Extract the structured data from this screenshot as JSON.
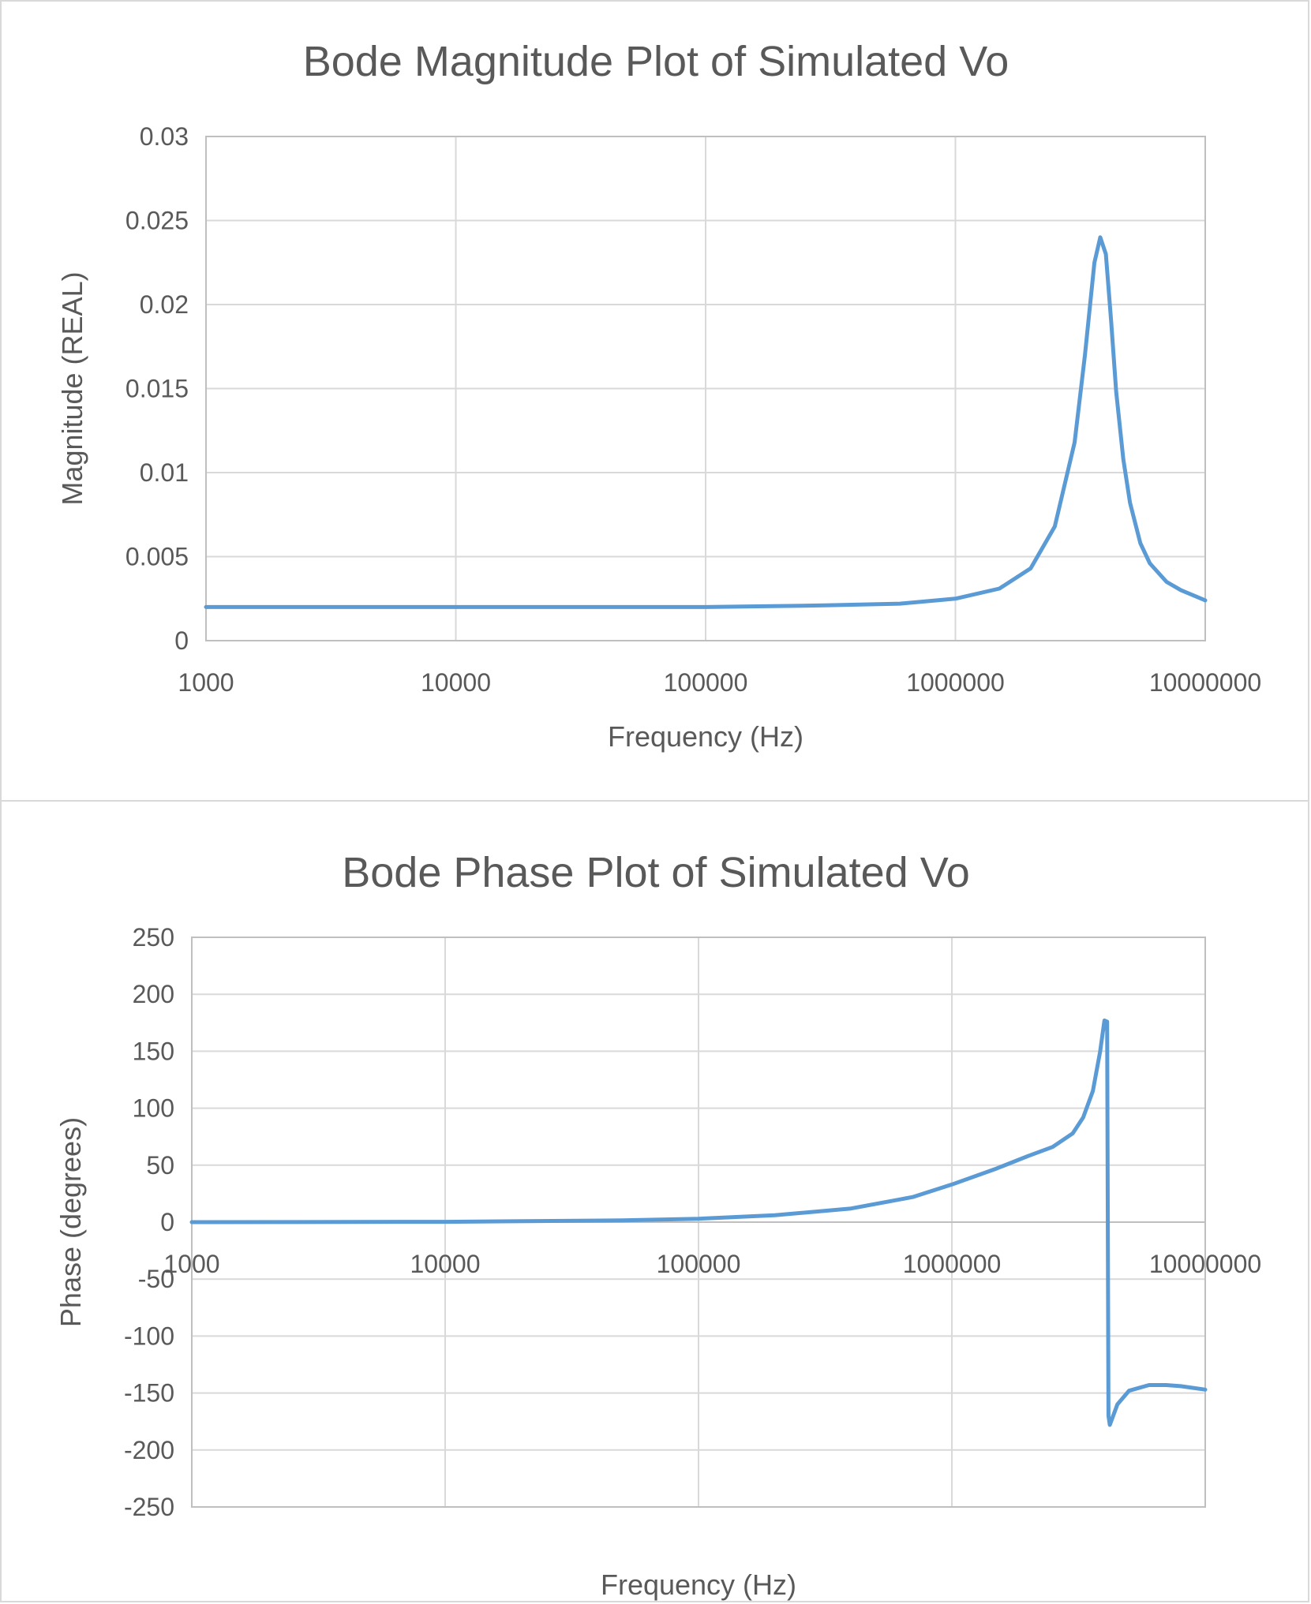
{
  "chart_data": [
    {
      "type": "line",
      "title": "Bode Magnitude Plot of Simulated Vo",
      "xlabel": "Frequency (Hz)",
      "ylabel": "Magnitude (REAL)",
      "xscale": "log",
      "xlim": [
        1000,
        10000000
      ],
      "ylim": [
        0,
        0.03
      ],
      "xticks": [
        "1000",
        "10000",
        "100000",
        "1000000",
        "10000000"
      ],
      "yticks": [
        "0",
        "0.005",
        "0.01",
        "0.015",
        "0.02",
        "0.025",
        "0.03"
      ],
      "grid": true,
      "legend": "none",
      "color": "#5b9bd5",
      "series": [
        {
          "x": [
            1000,
            10000,
            100000,
            300000,
            600000,
            1000000,
            1500000,
            2000000,
            2500000,
            3000000,
            3300000,
            3600000,
            3800000,
            4000000,
            4200000,
            4400000,
            4700000,
            5000000,
            5500000,
            6000000,
            7000000,
            8000000,
            10000000
          ],
          "y": [
            0.002,
            0.002,
            0.002,
            0.0021,
            0.0022,
            0.0025,
            0.0031,
            0.0043,
            0.0068,
            0.0118,
            0.017,
            0.0225,
            0.024,
            0.023,
            0.019,
            0.0148,
            0.0108,
            0.0082,
            0.0058,
            0.0046,
            0.0035,
            0.003,
            0.0024
          ]
        }
      ]
    },
    {
      "type": "line",
      "title": "Bode Phase Plot of Simulated Vo",
      "xlabel": "Frequency (Hz)",
      "ylabel": "Phase (degrees)",
      "xscale": "log",
      "xlim": [
        1000,
        10000000
      ],
      "ylim": [
        -250,
        250
      ],
      "xticks": [
        "1000",
        "10000",
        "100000",
        "1000000",
        "10000000"
      ],
      "yticks": [
        "-250",
        "-200",
        "-150",
        "-100",
        "-50",
        "0",
        "50",
        "100",
        "150",
        "200",
        "250"
      ],
      "grid": true,
      "legend": "none",
      "color": "#5b9bd5",
      "series": [
        {
          "x": [
            1000,
            10000,
            50000,
            100000,
            200000,
            400000,
            700000,
            1000000,
            1500000,
            2000000,
            2500000,
            3000000,
            3300000,
            3600000,
            3850000,
            4000000,
            4100000,
            4150000,
            4200000,
            4300000,
            4500000,
            5000000,
            6000000,
            7000000,
            8000000,
            10000000
          ],
          "y": [
            0,
            0.3,
            1.5,
            3,
            6,
            12,
            22,
            33,
            47,
            58,
            66,
            78,
            92,
            115,
            150,
            177,
            176,
            -170,
            -178,
            -172,
            -160,
            -148,
            -143,
            -143,
            -144,
            -147
          ]
        }
      ]
    }
  ]
}
